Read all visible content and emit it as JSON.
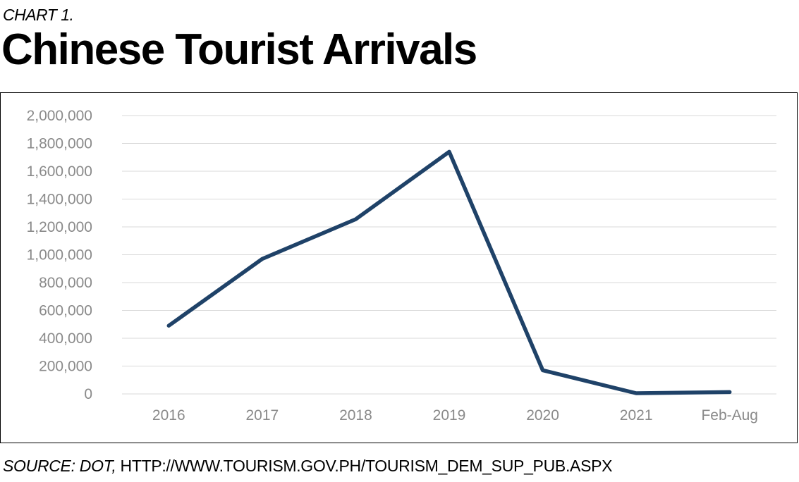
{
  "header": {
    "chart_label": "CHART 1.",
    "title": "Chinese Tourist Arrivals"
  },
  "footer": {
    "source_label": "SOURCE: DOT,",
    "source_url": "HTTP://WWW.TOURISM.GOV.PH/TOURISM_DEM_SUP_PUB.ASPX"
  },
  "colors": {
    "line": "#1f4268",
    "grid": "#d9d9d9",
    "tick_text": "#8a8a8a"
  },
  "chart_data": {
    "type": "line",
    "title": "Chinese Tourist Arrivals",
    "xlabel": "",
    "ylabel": "",
    "categories": [
      "2016",
      "2017",
      "2018",
      "2019",
      "2020",
      "2021",
      "Feb-Aug"
    ],
    "series": [
      {
        "values": [
          490000,
          970000,
          1255000,
          1740000,
          170000,
          5000,
          13000
        ]
      }
    ],
    "ylim": [
      0,
      2000000
    ],
    "yticks": [
      0,
      200000,
      400000,
      600000,
      800000,
      1000000,
      1200000,
      1400000,
      1600000,
      1800000,
      2000000
    ],
    "ytick_labels": [
      "0",
      "200,000",
      "400,000",
      "600,000",
      "800,000",
      "1,000,000",
      "1,200,000",
      "1,400,000",
      "1,600,000",
      "1,800,000",
      "2,000,000"
    ],
    "grid": true,
    "legend": "none"
  }
}
